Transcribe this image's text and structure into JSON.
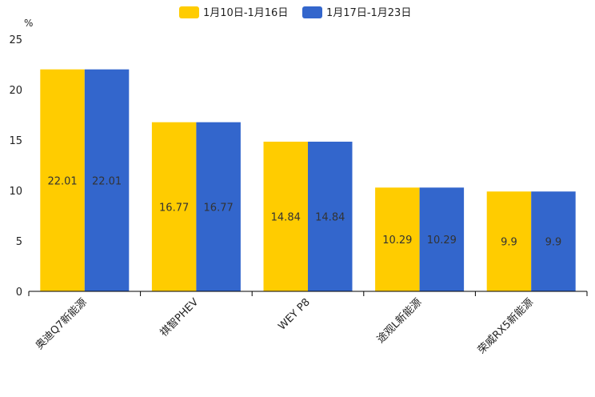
{
  "chart_data": {
    "type": "bar",
    "title": "",
    "xlabel": "",
    "ylabel": "",
    "unit": "%",
    "ylim": [
      0,
      25
    ],
    "yticks": [
      0,
      5,
      10,
      15,
      20,
      25
    ],
    "legend_position": "top-center",
    "categories": [
      "奥迪Q7新能源",
      "祺智PHEV",
      "WEY P8",
      "途观L新能源",
      "荣威RX5新能源"
    ],
    "series": [
      {
        "name": "1月10日-1月16日",
        "color": "#FFCC00",
        "values": [
          22.01,
          16.77,
          14.84,
          10.29,
          9.9
        ],
        "labels": [
          "22.01",
          "16.77",
          "14.84",
          "10.29",
          "9.9"
        ]
      },
      {
        "name": "1月17日-1月23日",
        "color": "#3366CC",
        "values": [
          22.01,
          16.77,
          14.84,
          10.29,
          9.9
        ],
        "labels": [
          "22.01",
          "16.77",
          "14.84",
          "10.29",
          "9.9"
        ]
      }
    ]
  }
}
